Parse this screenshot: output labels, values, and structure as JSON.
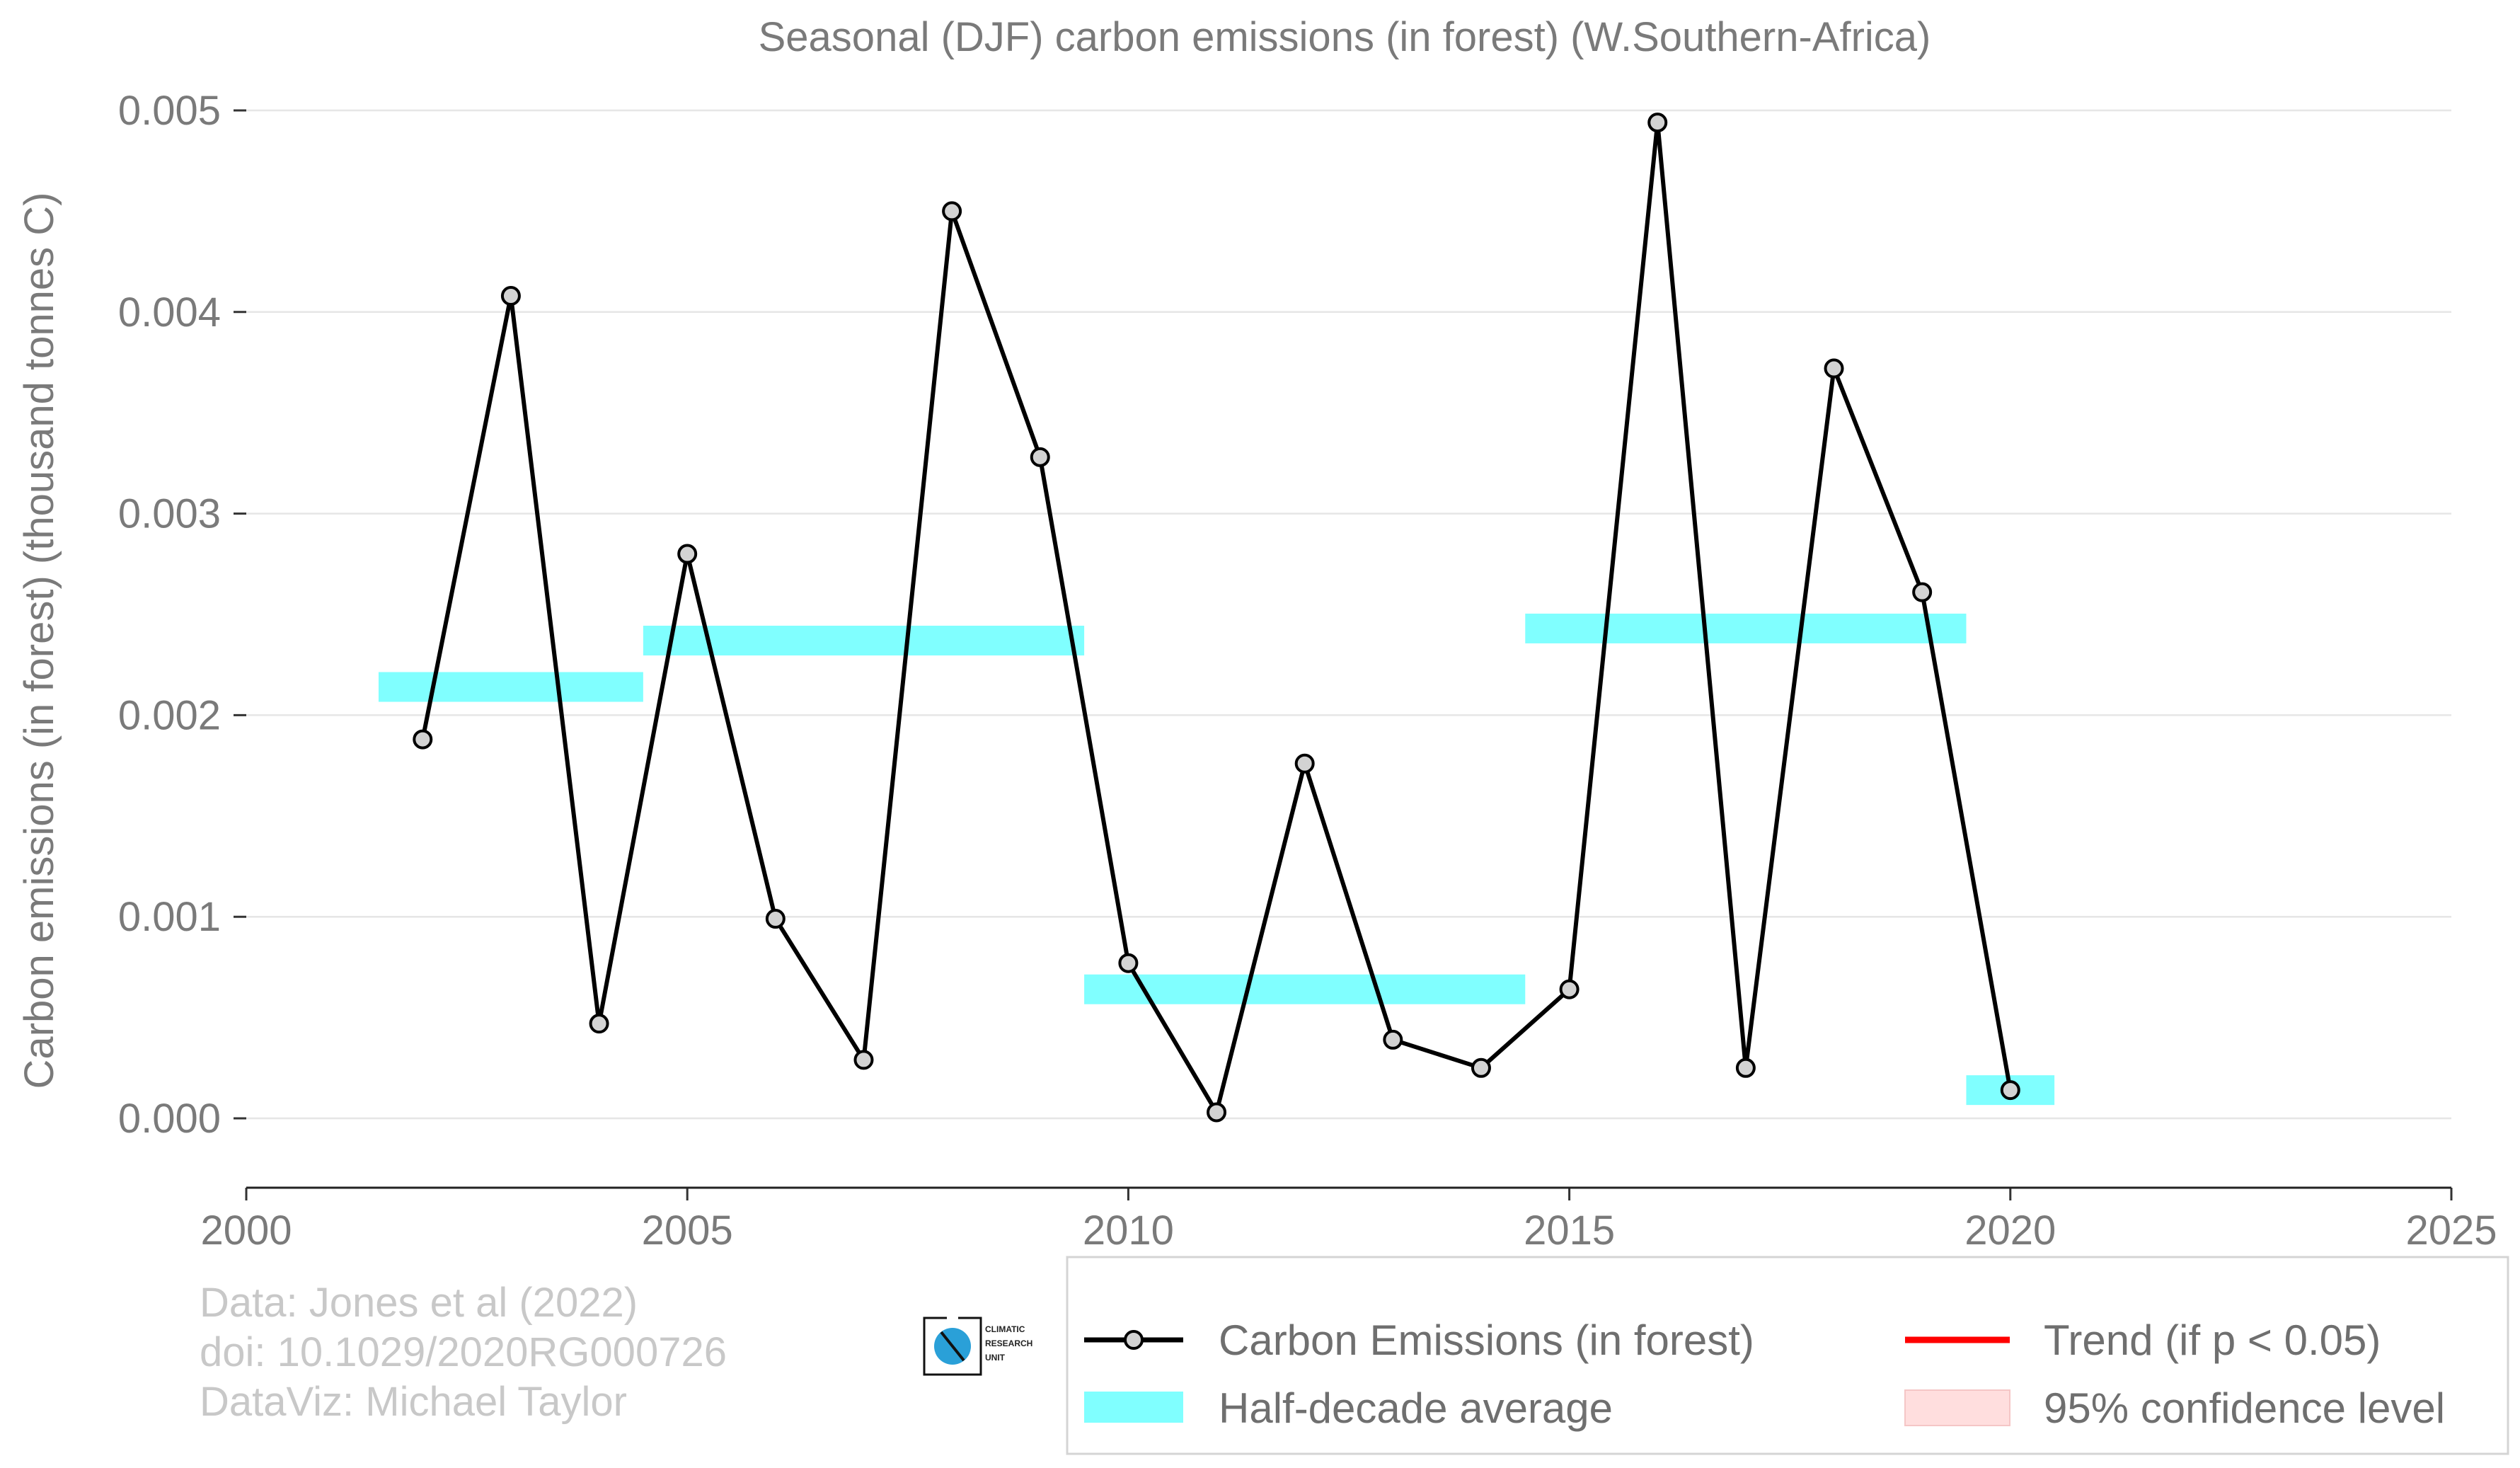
{
  "chart_data": {
    "type": "line",
    "title": "Seasonal (DJF) carbon emissions (in forest) (W.Southern-Africa)",
    "xlabel": "",
    "ylabel": "Carbon emissions (in forest) (thousand tonnes C)",
    "xlim": [
      2000,
      2025
    ],
    "ylim": [
      -0.0003,
      0.005
    ],
    "x_ticks": [
      "2000",
      "2005",
      "2010",
      "2015",
      "2020",
      "2025"
    ],
    "x_tick_values": [
      2000,
      2005,
      2010,
      2015,
      2020,
      2025
    ],
    "y_ticks": [
      "0.000",
      "0.001",
      "0.002",
      "0.003",
      "0.004",
      "0.005"
    ],
    "y_tick_values": [
      0,
      0.001,
      0.002,
      0.003,
      0.004,
      0.005
    ],
    "grid": "horizontal",
    "series": [
      {
        "name": "Carbon Emissions (in forest)",
        "color": "#000000",
        "marker_color": "#d3d3d3",
        "x": [
          2002,
          2003,
          2004,
          2005,
          2006,
          2007,
          2008,
          2009,
          2010,
          2011,
          2012,
          2013,
          2014,
          2015,
          2016,
          2017,
          2018,
          2019,
          2020
        ],
        "y": [
          0.00188,
          0.00408,
          0.00047,
          0.0028,
          0.00099,
          0.00029,
          0.0045,
          0.00328,
          0.00077,
          3e-05,
          0.00176,
          0.00039,
          0.00025,
          0.00064,
          0.00494,
          0.00025,
          0.00372,
          0.00261,
          0.00014
        ]
      }
    ],
    "half_decade_average": {
      "name": "Half-decade average",
      "color": "#80ffff",
      "segments": [
        {
          "x_start": 2001.5,
          "x_end": 2004.5,
          "y": 0.00214
        },
        {
          "x_start": 2004.5,
          "x_end": 2009.5,
          "y": 0.00237
        },
        {
          "x_start": 2009.5,
          "x_end": 2014.5,
          "y": 0.00064
        },
        {
          "x_start": 2014.5,
          "x_end": 2019.5,
          "y": 0.00243
        },
        {
          "x_start": 2019.5,
          "x_end": 2020.5,
          "y": 0.00014
        }
      ]
    },
    "legend": {
      "position": "bottom-right",
      "entries": [
        {
          "label": "Carbon Emissions (in forest)",
          "kind": "line-marker",
          "color": "#000000"
        },
        {
          "label": "Trend (if p < 0.05)",
          "kind": "line",
          "color": "#ff0000"
        },
        {
          "label": "Half-decade average",
          "kind": "band",
          "color": "#80ffff"
        },
        {
          "label": "95% confidence level",
          "kind": "patch",
          "color": "#ffdede"
        }
      ]
    },
    "credits": [
      "Data: Jones et al (2022)",
      "doi: 10.1029/2020RG000726",
      "DataViz: Michael Taylor"
    ],
    "logo": {
      "name": "climatic-research-unit-logo",
      "lines": [
        "CLIMATIC",
        "RESEARCH",
        "UNIT"
      ]
    }
  }
}
